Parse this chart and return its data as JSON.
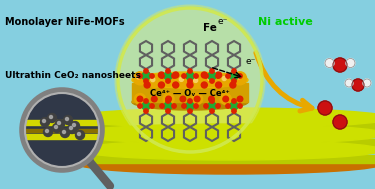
{
  "bg_color": "#85cfe0",
  "label1": "Monolayer NiFe-MOFs",
  "label2": "Ultrathin CeO₂ nanosheets",
  "label3": "Ni active",
  "label4": "Fe",
  "label5": "e⁻",
  "label6": "Ce⁴⁺ — Oᵥ — Ce⁴⁺",
  "sheet_yellow": "#d4e000",
  "sheet_lime": "#c8d400",
  "sheet_side": "#b8c400",
  "sheet_edge_dark": "#8a7000",
  "arrow_color": "#e8a800",
  "water_o": "#cc1111",
  "water_h": "#f8f8f8",
  "ni_color": "#00cc00",
  "ceo2_gold": "#e8b800",
  "ceo2_dark": "#c89000",
  "ce_atom": "#e8a000",
  "o_red": "#dd2200",
  "mof_gray": "#707070",
  "fe_green": "#22aa44",
  "magnifier_bg": "#c0d8e8",
  "magnifier_frame": "#707070"
}
